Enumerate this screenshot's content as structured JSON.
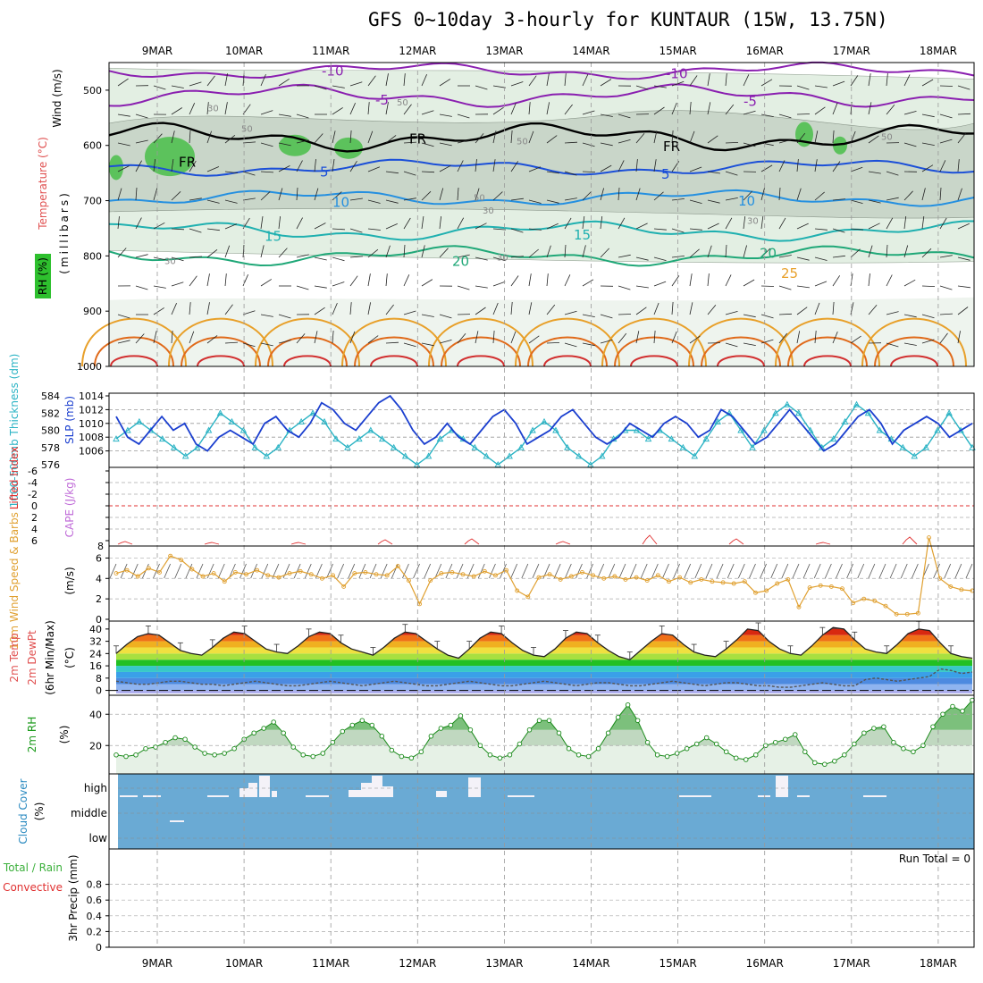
{
  "title": "GFS 0~10day 3-hourly for KUNTAUR (15W, 13.75N)",
  "dates": [
    "9MAR",
    "10MAR",
    "11MAR",
    "12MAR",
    "13MAR",
    "14MAR",
    "15MAR",
    "16MAR",
    "17MAR",
    "18MAR"
  ],
  "colors": {
    "slp": "#1b3fcf",
    "thick": "#2ab3c4",
    "lifted": "#e03030",
    "cape": "#c06cd8",
    "wind": "#e0a030",
    "rh_fill": "#4caf50",
    "cloud": "#6aaad4",
    "precip_total": "#3cb03c",
    "precip_conv": "#e03030"
  },
  "chart_data": [
    {
      "type": "heatmap",
      "panel": "upper-air",
      "ylabels": {
        "wind": "Wind (m/s)",
        "temp": "Temperature (°C)",
        "rh": "RH (%)",
        "mb": "(millibars)"
      },
      "yticks": [
        "500",
        "600",
        "700",
        "800",
        "900",
        "1000"
      ],
      "ylim": [
        450,
        1000
      ],
      "isotherm_labels": [
        "-10",
        "-10",
        "-5",
        "-5",
        "FR",
        "FR",
        "FR",
        "5",
        "5",
        "10",
        "10",
        "15",
        "15",
        "20",
        "20",
        "25"
      ],
      "rh_labels": [
        "30",
        "50",
        "50",
        "50",
        "50",
        "30",
        "30",
        "30",
        "30",
        "50"
      ]
    },
    {
      "type": "line",
      "panel": "slp-thickness",
      "ylabels": {
        "thick": "1000-500mb Thickness (dm)",
        "slp": "SLP (mb)"
      },
      "thick_ticks": [
        "576",
        "578",
        "580",
        "582",
        "584"
      ],
      "slp_ticks": [
        "1006",
        "1008",
        "1010",
        "1012",
        "1014"
      ],
      "series": [
        {
          "name": "SLP",
          "values": [
            1011,
            1008,
            1007,
            1009,
            1011,
            1009,
            1010,
            1007,
            1006,
            1008,
            1009,
            1008,
            1007,
            1010,
            1011,
            1009,
            1008,
            1010,
            1013,
            1012,
            1010,
            1009,
            1011,
            1013,
            1014,
            1012,
            1009,
            1007,
            1008,
            1010,
            1008,
            1007,
            1009,
            1011,
            1012,
            1010,
            1007,
            1008,
            1009,
            1011,
            1012,
            1010,
            1008,
            1007,
            1008,
            1010,
            1009,
            1008,
            1010,
            1011,
            1010,
            1008,
            1009,
            1012,
            1011,
            1009,
            1007,
            1008,
            1010,
            1012,
            1010,
            1008,
            1006,
            1007,
            1009,
            1011,
            1012,
            1010,
            1007,
            1009,
            1010,
            1011,
            1010,
            1008,
            1009,
            1010
          ]
        },
        {
          "name": "Thickness",
          "values": [
            579,
            580,
            581,
            580,
            579,
            578,
            577,
            578,
            580,
            582,
            581,
            580,
            578,
            577,
            578,
            580,
            581,
            582,
            581,
            579,
            578,
            579,
            580,
            579,
            578,
            577,
            576,
            577,
            579,
            580,
            579,
            578,
            577,
            576,
            577,
            578,
            580,
            581,
            580,
            578,
            577,
            576,
            577,
            579,
            580,
            580,
            579,
            580,
            579,
            578,
            577,
            579,
            581,
            582,
            580,
            578,
            580,
            582,
            583,
            582,
            580,
            578,
            579,
            581,
            583,
            582,
            580,
            579,
            578,
            577,
            578,
            580,
            582,
            580,
            578
          ]
        }
      ]
    },
    {
      "type": "line",
      "panel": "lifted-cape",
      "ylabels": {
        "lifted": "Lifted Index",
        "cape": "CAPE (J/kg)"
      },
      "lifted_ticks": [
        "-6",
        "-4",
        "-2",
        "0",
        "2",
        "4",
        "6"
      ],
      "cape_ticks": [
        "8"
      ],
      "note": "CAPE near zero; brief peaks each afternoon"
    },
    {
      "type": "line",
      "panel": "10m-wind",
      "ylabels": {
        "main": "10m Wind Speed & Barbs",
        "unit": "(m/s)"
      },
      "yticks": [
        "0",
        "2",
        "4",
        "6"
      ],
      "ylim": [
        0,
        7
      ],
      "series": [
        {
          "name": "Speed",
          "values": [
            4.5,
            4.8,
            4.2,
            5.0,
            4.6,
            6.2,
            5.8,
            4.9,
            4.2,
            4.5,
            3.7,
            4.6,
            4.4,
            4.8,
            4.3,
            4.1,
            4.5,
            4.7,
            4.4,
            4.0,
            4.3,
            3.2,
            4.5,
            4.6,
            4.4,
            4.3,
            5.2,
            3.8,
            1.5,
            3.8,
            4.5,
            4.6,
            4.4,
            4.2,
            4.7,
            4.3,
            4.8,
            2.8,
            2.2,
            4.1,
            4.4,
            3.9,
            4.2,
            4.6,
            4.3,
            4.0,
            4.2,
            3.9,
            4.1,
            3.8,
            4.3,
            3.7,
            4.1,
            3.6,
            3.9,
            3.7,
            3.6,
            3.5,
            3.7,
            2.6,
            2.8,
            3.5,
            3.9,
            1.2,
            3.1,
            3.3,
            3.2,
            3.0,
            1.6,
            2.0,
            1.8,
            1.3,
            0.5,
            0.5,
            0.6,
            8.0,
            4.0,
            3.2,
            2.9,
            2.8
          ]
        }
      ]
    },
    {
      "type": "area",
      "panel": "2m-temp",
      "ylabels": {
        "main": "2m Temp",
        "dew": "2m DewPt",
        "minmax": "(6hr Min/Max)",
        "unit": "(°C)"
      },
      "yticks": [
        "0",
        "8",
        "16",
        "24",
        "32",
        "40"
      ],
      "ylim": [
        -2,
        44
      ],
      "series": [
        {
          "name": "Temp",
          "values": [
            24,
            30,
            35,
            37,
            36,
            31,
            26,
            24,
            23,
            28,
            34,
            38,
            37,
            32,
            27,
            25,
            24,
            29,
            35,
            38,
            37,
            31,
            27,
            25,
            23,
            28,
            34,
            38,
            37,
            32,
            27,
            23,
            21,
            27,
            34,
            38,
            37,
            31,
            26,
            23,
            22,
            27,
            34,
            38,
            37,
            31,
            26,
            22,
            20,
            26,
            32,
            37,
            36,
            30,
            25,
            23,
            22,
            27,
            33,
            40,
            39,
            32,
            27,
            24,
            23,
            29,
            36,
            41,
            40,
            33,
            27,
            25,
            24,
            30,
            37,
            40,
            39,
            31,
            24,
            22,
            21
          ]
        },
        {
          "name": "DewPt",
          "values": [
            6,
            5,
            4,
            4,
            5,
            6,
            6,
            5,
            4,
            4,
            3,
            4,
            5,
            6,
            5,
            4,
            3,
            3,
            4,
            5,
            6,
            5,
            4,
            3,
            4,
            5,
            6,
            5,
            4,
            3,
            3,
            4,
            5,
            6,
            5,
            4,
            3,
            3,
            4,
            5,
            6,
            5,
            4,
            3,
            4,
            5,
            5,
            4,
            3,
            3,
            4,
            5,
            6,
            5,
            4,
            3,
            4,
            5,
            5,
            4,
            3,
            3,
            2,
            2,
            3,
            4,
            5,
            4,
            3,
            3,
            7,
            8,
            7,
            6,
            7,
            8,
            9,
            14,
            13,
            11,
            12
          ]
        }
      ]
    },
    {
      "type": "area",
      "panel": "2m-rh",
      "ylabels": {
        "main": "2m RH",
        "unit": "(%)"
      },
      "yticks": [
        "20",
        "40"
      ],
      "ylim": [
        3,
        51
      ],
      "series": [
        {
          "name": "RH",
          "values": [
            14,
            13,
            14,
            18,
            19,
            22,
            25,
            24,
            19,
            15,
            14,
            15,
            18,
            24,
            28,
            31,
            35,
            28,
            19,
            14,
            13,
            15,
            22,
            29,
            33,
            36,
            33,
            26,
            17,
            13,
            12,
            16,
            26,
            31,
            33,
            39,
            30,
            20,
            14,
            12,
            14,
            21,
            30,
            36,
            36,
            28,
            18,
            14,
            13,
            18,
            28,
            38,
            46,
            36,
            22,
            14,
            13,
            15,
            18,
            21,
            25,
            21,
            16,
            12,
            11,
            14,
            20,
            22,
            24,
            27,
            16,
            9,
            8,
            10,
            14,
            21,
            28,
            31,
            32,
            22,
            18,
            16,
            20,
            32,
            40,
            45,
            42,
            49
          ]
        }
      ]
    },
    {
      "type": "bar",
      "panel": "cloud-cover",
      "ylabels": {
        "main": "Cloud Cover",
        "unit": "(%)"
      },
      "levels": [
        "high",
        "middle",
        "low"
      ],
      "note": "high cloud intermittently present; middle/low mostly clear"
    },
    {
      "type": "bar",
      "panel": "precip",
      "ylabels": {
        "main": "3hr Precip (mm)",
        "total": "Total / Rain",
        "conv": "Convective"
      },
      "yticks": [
        "0",
        "0.2",
        "0.4",
        "0.6",
        "0.8"
      ],
      "ylim": [
        0,
        1
      ],
      "run_total": "Run Total = 0"
    }
  ]
}
